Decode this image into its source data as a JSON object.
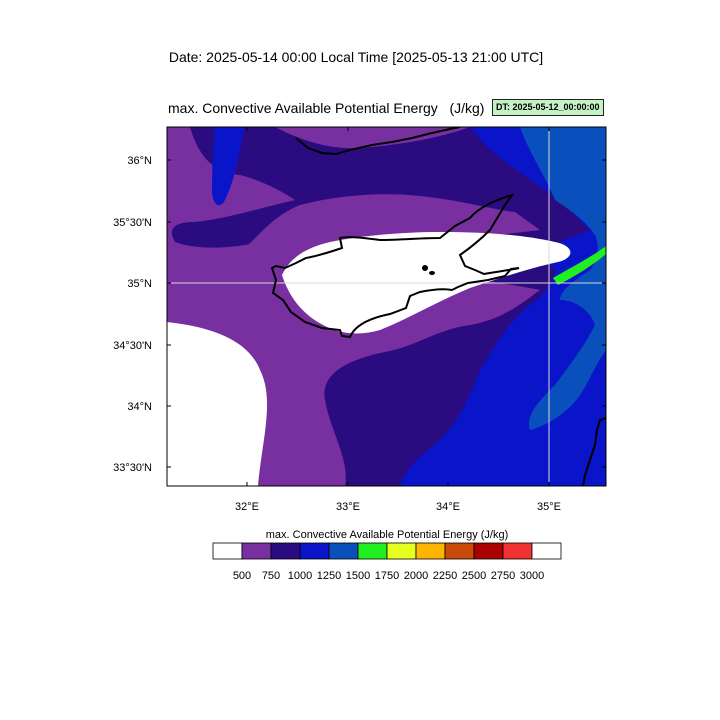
{
  "header": {
    "date_title": "Date: 2025-05-14  00:00 Local Time [2025-05-13  21:00 UTC]",
    "map_title": "max. Convective Available Potential Energy   (J/kg)",
    "dt_badge": "DT: 2025-05-12_00:00:00"
  },
  "map": {
    "lat_labels": [
      "36°N",
      "35°30'N",
      "35°N",
      "34°30'N",
      "34°N",
      "33°30'N"
    ],
    "lon_labels": [
      "32°E",
      "33°E",
      "34°E",
      "35°E"
    ]
  },
  "legend": {
    "title": "max. Convective Available Potential Energy  (J/kg)",
    "ticks": [
      "500",
      "750",
      "1000",
      "1250",
      "1500",
      "1750",
      "2000",
      "2250",
      "2500",
      "2750",
      "3000"
    ],
    "colors": [
      "#ffffff",
      "#7830a0",
      "#2a0c80",
      "#0a14c8",
      "#0a50bc",
      "#20f020",
      "#e6ff1e",
      "#ffb400",
      "#c84b0a",
      "#aa0000",
      "#f03232",
      "#ffffff"
    ]
  },
  "colors": {
    "cape_500_750": "#7830a0",
    "cape_750_1000": "#2a0c80",
    "cape_1000_1250": "#0a14c8",
    "cape_1250_1500": "#0a50bc",
    "cape_1500_1750": "#20f020"
  }
}
